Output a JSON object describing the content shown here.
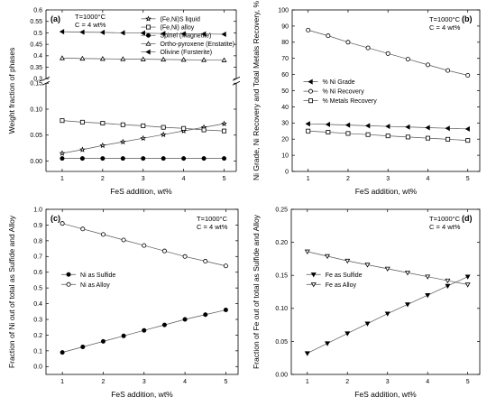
{
  "chart_data": [
    {
      "type": "line",
      "panel_label": "(a)",
      "annotations": [
        "T=1000°C",
        "C = 4 wt%"
      ],
      "xlabel": "FeS addition, wt%",
      "ylabel": "Weight fraction of phases",
      "xlim": [
        0.6,
        5.3
      ],
      "ylim": [
        -0.02,
        0.6
      ],
      "axis_break": [
        0.15,
        0.3
      ],
      "xticks": [
        1,
        2,
        3,
        4,
        5
      ],
      "yticks": [
        0.0,
        0.05,
        0.1,
        0.15,
        0.3,
        0.35,
        0.4,
        0.45,
        0.5,
        0.55,
        0.6
      ],
      "ytick_labels": [
        "0.00",
        "0.05",
        "0.10",
        "0.15",
        "0.3",
        "0.35",
        "0.4",
        "0.45",
        "0.5",
        "0.55",
        "0.6"
      ],
      "legend_position": "top-right",
      "x": [
        1,
        1.5,
        2,
        2.5,
        3,
        3.5,
        4,
        4.5,
        5
      ],
      "series": [
        {
          "name": "(Fe,Ni)S liquid",
          "marker": "star-open",
          "values": [
            0.015,
            0.022,
            0.03,
            0.037,
            0.044,
            0.051,
            0.058,
            0.065,
            0.072
          ]
        },
        {
          "name": "(Fe,Ni) alloy",
          "marker": "square-open",
          "values": [
            0.078,
            0.075,
            0.073,
            0.07,
            0.068,
            0.065,
            0.063,
            0.06,
            0.058
          ]
        },
        {
          "name": "Spinel (Magnetite)",
          "marker": "circle-filled",
          "values": [
            0.005,
            0.005,
            0.005,
            0.005,
            0.005,
            0.005,
            0.005,
            0.005,
            0.005
          ]
        },
        {
          "name": "Ortho-pyroxene (Enstatite)",
          "marker": "triangle-up-open",
          "values": [
            0.39,
            0.388,
            0.387,
            0.386,
            0.385,
            0.384,
            0.383,
            0.382,
            0.381
          ]
        },
        {
          "name": "Olivine (Forsterite)",
          "marker": "triangle-left-filled",
          "values": [
            0.505,
            0.503,
            0.502,
            0.5,
            0.499,
            0.497,
            0.496,
            0.495,
            0.494
          ]
        }
      ]
    },
    {
      "type": "line",
      "panel_label": "(b)",
      "annotations": [
        "T=1000°C",
        "C = 4 wt%"
      ],
      "xlabel": "FeS addition, wt%",
      "ylabel": "Ni Grade, Ni Recovery and Total Metals Recovery, %",
      "xlim": [
        0.6,
        5.3
      ],
      "ylim": [
        0,
        100
      ],
      "xticks": [
        1,
        2,
        3,
        4,
        5
      ],
      "yticks": [
        0,
        10,
        20,
        30,
        40,
        50,
        60,
        70,
        80,
        90,
        100
      ],
      "ytick_labels": [
        "0",
        "10",
        "20",
        "30",
        "40",
        "50",
        "60",
        "70",
        "80",
        "90",
        "100"
      ],
      "legend_position": "center-left",
      "x": [
        1,
        1.5,
        2,
        2.5,
        3,
        3.5,
        4,
        4.5,
        5
      ],
      "series": [
        {
          "name": "% Ni Grade",
          "marker": "triangle-left-filled",
          "values": [
            29.5,
            29.1,
            28.7,
            28.3,
            27.9,
            27.5,
            27.1,
            26.7,
            26.3
          ]
        },
        {
          "name": "% Ni Recovery",
          "marker": "circle-open",
          "values": [
            87.5,
            84,
            80,
            76.5,
            73,
            69.5,
            66,
            62.5,
            59.5
          ]
        },
        {
          "name": "% Metals Recovery",
          "marker": "square-open",
          "values": [
            25,
            24.3,
            23.5,
            22.8,
            22,
            21.3,
            20.6,
            19.9,
            19.2
          ]
        }
      ]
    },
    {
      "type": "line",
      "panel_label": "(c)",
      "annotations": [
        "T=1000°C",
        "C = 4 wt%"
      ],
      "xlabel": "FeS addition, wt%",
      "ylabel": "Fraction of Ni out of total as Sulfide and Alloy",
      "xlim": [
        0.6,
        5.3
      ],
      "ylim": [
        -0.05,
        1.0
      ],
      "xticks": [
        1,
        2,
        3,
        4,
        5
      ],
      "yticks": [
        0.0,
        0.1,
        0.2,
        0.3,
        0.4,
        0.5,
        0.6,
        0.7,
        0.8,
        0.9,
        1.0
      ],
      "ytick_labels": [
        "0.0",
        "0.1",
        "0.2",
        "0.3",
        "0.4",
        "0.5",
        "0.6",
        "0.7",
        "0.8",
        "0.9",
        "1.0"
      ],
      "legend_position": "center-left",
      "x": [
        1,
        1.5,
        2,
        2.5,
        3,
        3.5,
        4,
        4.5,
        5
      ],
      "series": [
        {
          "name": "Ni as Sulfide",
          "marker": "circle-filled",
          "values": [
            0.09,
            0.125,
            0.16,
            0.195,
            0.23,
            0.265,
            0.3,
            0.33,
            0.36
          ]
        },
        {
          "name": "Ni as Alloy",
          "marker": "circle-open",
          "values": [
            0.91,
            0.875,
            0.84,
            0.805,
            0.77,
            0.735,
            0.7,
            0.67,
            0.64
          ]
        }
      ]
    },
    {
      "type": "line",
      "panel_label": "(d)",
      "annotations": [
        "T=1000°C",
        "C = 4 wt%"
      ],
      "xlabel": "FeS addition, wt%",
      "ylabel": "Fraction of Fe out of total as Sulfide and Alloy",
      "xlim": [
        0.6,
        5.3
      ],
      "ylim": [
        0,
        0.25
      ],
      "xticks": [
        1,
        2,
        3,
        4,
        5
      ],
      "yticks": [
        0.0,
        0.05,
        0.1,
        0.15,
        0.2,
        0.25
      ],
      "ytick_labels": [
        "0.00",
        "0.05",
        "0.10",
        "0.15",
        "0.20",
        "0.25"
      ],
      "legend_position": "center-left",
      "x": [
        1,
        1.5,
        2,
        2.5,
        3,
        3.5,
        4,
        4.5,
        5
      ],
      "series": [
        {
          "name": "Fe as Sulfide",
          "marker": "triangle-down-filled",
          "values": [
            0.032,
            0.047,
            0.062,
            0.077,
            0.092,
            0.106,
            0.12,
            0.134,
            0.148
          ]
        },
        {
          "name": "Fe as Alloy",
          "marker": "triangle-down-open",
          "values": [
            0.186,
            0.179,
            0.172,
            0.166,
            0.16,
            0.154,
            0.148,
            0.142,
            0.136
          ]
        }
      ]
    }
  ]
}
